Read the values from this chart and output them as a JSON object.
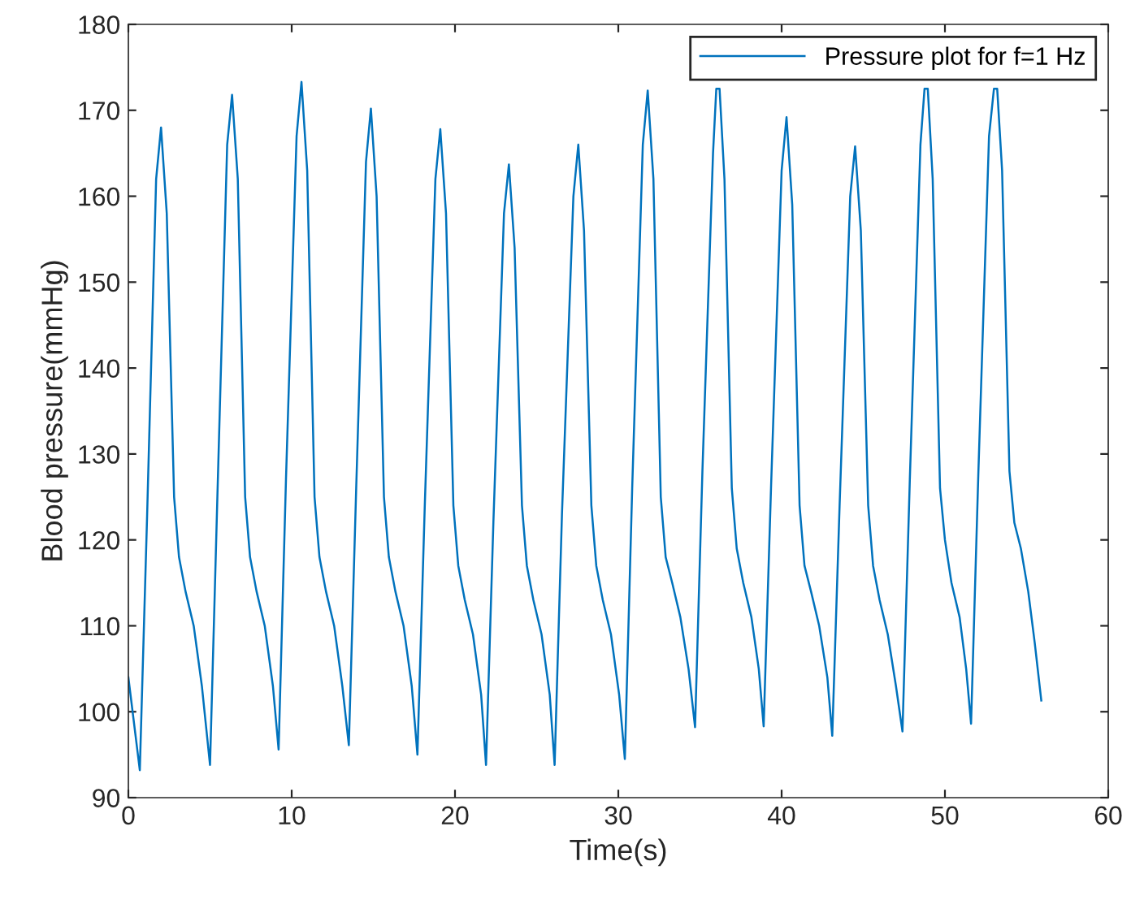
{
  "chart_data": {
    "type": "line",
    "xlabel": "Time(s)",
    "ylabel": "Blood pressure(mmHg)",
    "xlim": [
      0,
      60
    ],
    "xticks": [
      0,
      10,
      20,
      30,
      40,
      50,
      60
    ],
    "ylim": [
      90,
      180
    ],
    "yticks": [
      90,
      100,
      110,
      120,
      130,
      140,
      150,
      160,
      170,
      180
    ],
    "grid": false,
    "legend": "top right",
    "marker": "none",
    "line_style": "solid",
    "series": [
      {
        "name": "Pressure plot for f=1 Hz",
        "color": "#0072bd",
        "x": [
          0,
          0.7,
          1.15,
          1.7,
          2.0,
          2.35,
          2.8,
          3.1,
          3.5,
          4.0,
          4.5,
          5.0,
          5.45,
          6.05,
          6.35,
          6.7,
          7.15,
          7.45,
          7.85,
          8.35,
          8.85,
          9.2,
          9.65,
          10.3,
          10.6,
          10.95,
          11.4,
          11.7,
          12.1,
          12.6,
          13.1,
          13.5,
          13.95,
          14.55,
          14.85,
          15.2,
          15.65,
          15.95,
          16.35,
          16.85,
          17.35,
          17.7,
          18.15,
          18.8,
          19.1,
          19.45,
          19.9,
          20.2,
          20.6,
          21.1,
          21.6,
          21.9,
          22.35,
          23.0,
          23.3,
          23.65,
          24.1,
          24.4,
          24.8,
          25.3,
          25.8,
          26.1,
          26.55,
          27.25,
          27.55,
          27.9,
          28.35,
          28.65,
          29.05,
          29.55,
          30.05,
          30.4,
          30.85,
          31.5,
          31.8,
          32.15,
          32.6,
          32.9,
          33.3,
          33.8,
          34.3,
          34.7,
          35.15,
          35.8,
          36.0,
          36.2,
          36.5,
          36.95,
          37.25,
          37.65,
          38.15,
          38.6,
          38.9,
          39.35,
          40.0,
          40.3,
          40.65,
          41.1,
          41.4,
          41.8,
          42.3,
          42.8,
          43.1,
          43.55,
          44.2,
          44.5,
          44.85,
          45.3,
          45.6,
          46.0,
          46.5,
          47.0,
          47.4,
          47.85,
          48.5,
          48.75,
          48.95,
          49.25,
          49.7,
          50.0,
          50.4,
          50.9,
          51.3,
          51.6,
          52.05,
          52.7,
          53.0,
          53.2,
          53.5,
          53.95,
          54.25,
          54.65,
          55.1,
          55.5,
          55.9
        ],
        "values": [
          104,
          93.2,
          123,
          162,
          168,
          158,
          125,
          118,
          114,
          110,
          103,
          93.8,
          125,
          166,
          171.8,
          162,
          125,
          118,
          114,
          110,
          103,
          95.6,
          127,
          167,
          173.3,
          163,
          125,
          118,
          114,
          110,
          103,
          96.1,
          126,
          164,
          170.2,
          160,
          125,
          118,
          114,
          110,
          103,
          95,
          124,
          162,
          167.8,
          158,
          124,
          117,
          113,
          109,
          102,
          93.8,
          122,
          158,
          163.7,
          154,
          124,
          117,
          113,
          109,
          102,
          93.8,
          123,
          160,
          166,
          156,
          124,
          117,
          113,
          109,
          102,
          94.5,
          126,
          166,
          172.3,
          162,
          125,
          118,
          115,
          111,
          105,
          98.2,
          128,
          165,
          172.5,
          172.5,
          162,
          126,
          119,
          115,
          111,
          105,
          98.3,
          126,
          163,
          169.2,
          159,
          124,
          117,
          114,
          110,
          104,
          97.2,
          124,
          160,
          165.8,
          156,
          124,
          117,
          113,
          109,
          103,
          97.7,
          127,
          166,
          172.5,
          172.5,
          162,
          126,
          120,
          115,
          111,
          105,
          98.6,
          128,
          167,
          172.5,
          172.5,
          163,
          128,
          122,
          119,
          114,
          108,
          101.3
        ]
      }
    ]
  }
}
